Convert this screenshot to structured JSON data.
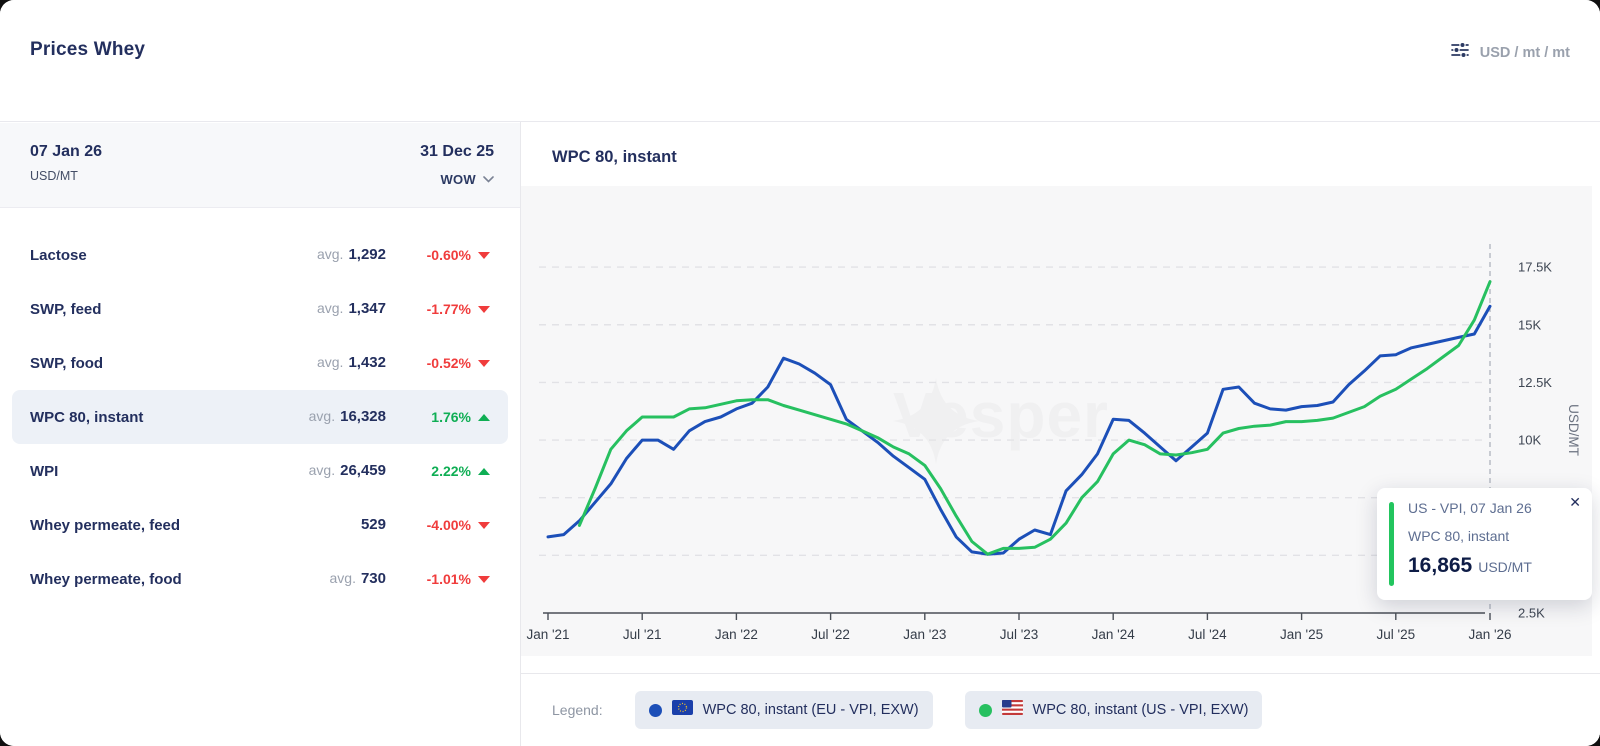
{
  "header": {
    "title": "Prices Whey",
    "unit_selector": "USD / mt / mt"
  },
  "sidebar": {
    "date_left": "07 Jan 26",
    "unit_left": "USD/MT",
    "date_right": "31 Dec 25",
    "period_selector": "WOW",
    "rows": [
      {
        "name": "Lactose",
        "avg_label": "avg.",
        "value": "1,292",
        "change": "-0.60%",
        "direction": "down",
        "selected": false
      },
      {
        "name": "SWP, feed",
        "avg_label": "avg.",
        "value": "1,347",
        "change": "-1.77%",
        "direction": "down",
        "selected": false
      },
      {
        "name": "SWP, food",
        "avg_label": "avg.",
        "value": "1,432",
        "change": "-0.52%",
        "direction": "down",
        "selected": false
      },
      {
        "name": "WPC 80, instant",
        "avg_label": "avg.",
        "value": "16,328",
        "change": "1.76%",
        "direction": "up",
        "selected": true
      },
      {
        "name": "WPI",
        "avg_label": "avg.",
        "value": "26,459",
        "change": "2.22%",
        "direction": "up",
        "selected": false
      },
      {
        "name": "Whey permeate, feed",
        "avg_label": "",
        "value": "529",
        "change": "-4.00%",
        "direction": "down",
        "selected": false
      },
      {
        "name": "Whey permeate, food",
        "avg_label": "avg.",
        "value": "730",
        "change": "-1.01%",
        "direction": "down",
        "selected": false
      }
    ]
  },
  "chart": {
    "title": "WPC 80, instant",
    "watermark": "Vesper",
    "y_axis_label": "USD/MT",
    "legend_label": "Legend:",
    "legend": [
      {
        "label": "WPC 80, instant (EU - VPI, EXW)",
        "color": "#1c4fb8",
        "flag": "eu-flag"
      },
      {
        "label": "WPC 80, instant (US - VPI, EXW)",
        "color": "#27c060",
        "flag": "us-flag"
      }
    ],
    "tooltip": {
      "line1": "US - VPI, 07 Jan 26",
      "line2": "WPC 80, instant",
      "value": "16,865",
      "unit": "USD/MT",
      "close_glyph": "✕"
    }
  },
  "icons": {
    "filter-icon": "slider-lines",
    "chevron-down-icon": "⌄",
    "triangle-down-icon": "▼",
    "triangle-up-icon": "▲",
    "close-icon": "✕"
  },
  "colors": {
    "accent_navy": "#232f5e",
    "eu_line": "#1c4fb8",
    "us_line": "#27c060",
    "negative": "#f03c3c",
    "positive": "#0fae54",
    "tooltip_accent": "#22c55e"
  },
  "chart_data": {
    "type": "line",
    "x_start": "2021-01",
    "x_end": "2026-01",
    "x_step": "month",
    "x_tick_labels": [
      "Jan '21",
      "Jul '21",
      "Jan '22",
      "Jul '22",
      "Jan '23",
      "Jul '23",
      "Jan '24",
      "Jul '24",
      "Jan '25",
      "Jul '25",
      "Jan '26"
    ],
    "y_ticks": [
      17500,
      15000,
      12500,
      10000,
      7500,
      5000,
      2500
    ],
    "y_tick_labels": [
      "17.5K",
      "15K",
      "12.5K",
      "10K",
      "7.5K",
      "5K",
      "2.5K"
    ],
    "ylim": [
      2500,
      17500
    ],
    "ylabel": "USD/MT",
    "grid": "dashed-horizontal",
    "legend_position": "bottom",
    "crosshair_x": "2026-01",
    "last_point": {
      "series": "US - VPI",
      "date": "07 Jan 26",
      "value": 16865
    },
    "series": [
      {
        "name": "WPC 80, instant (EU - VPI, EXW)",
        "color": "#1c4fb8",
        "values": [
          5800,
          5900,
          6500,
          7300,
          8100,
          9200,
          10000,
          10000,
          9600,
          10400,
          10800,
          11000,
          11350,
          11600,
          12300,
          13550,
          13300,
          12900,
          12400,
          10900,
          10400,
          9900,
          9300,
          8800,
          8300,
          7000,
          5800,
          5150,
          5050,
          5100,
          5700,
          6100,
          5900,
          7800,
          8500,
          9400,
          10900,
          10850,
          10300,
          9700,
          9100,
          9700,
          10300,
          12200,
          12300,
          11600,
          11350,
          11300,
          11450,
          11500,
          11650,
          12400,
          13000,
          13650,
          13700,
          14000,
          14150,
          14300,
          14450,
          14600,
          15800
        ]
      },
      {
        "name": "WPC 80, instant (US - VPI, EXW)",
        "color": "#27c060",
        "values": [
          null,
          null,
          6300,
          7900,
          9600,
          10400,
          11000,
          11000,
          11000,
          11350,
          11400,
          11550,
          11700,
          11750,
          11750,
          11500,
          11300,
          11100,
          10900,
          10700,
          10400,
          10100,
          9700,
          9400,
          8900,
          7900,
          6700,
          5600,
          5050,
          5300,
          5300,
          5350,
          5700,
          6400,
          7500,
          8200,
          9400,
          10000,
          9800,
          9400,
          9350,
          9450,
          9600,
          10300,
          10500,
          10600,
          10650,
          10800,
          10800,
          10850,
          10950,
          11200,
          11450,
          11900,
          12200,
          12650,
          13100,
          13600,
          14100,
          15200,
          16865
        ]
      }
    ]
  }
}
